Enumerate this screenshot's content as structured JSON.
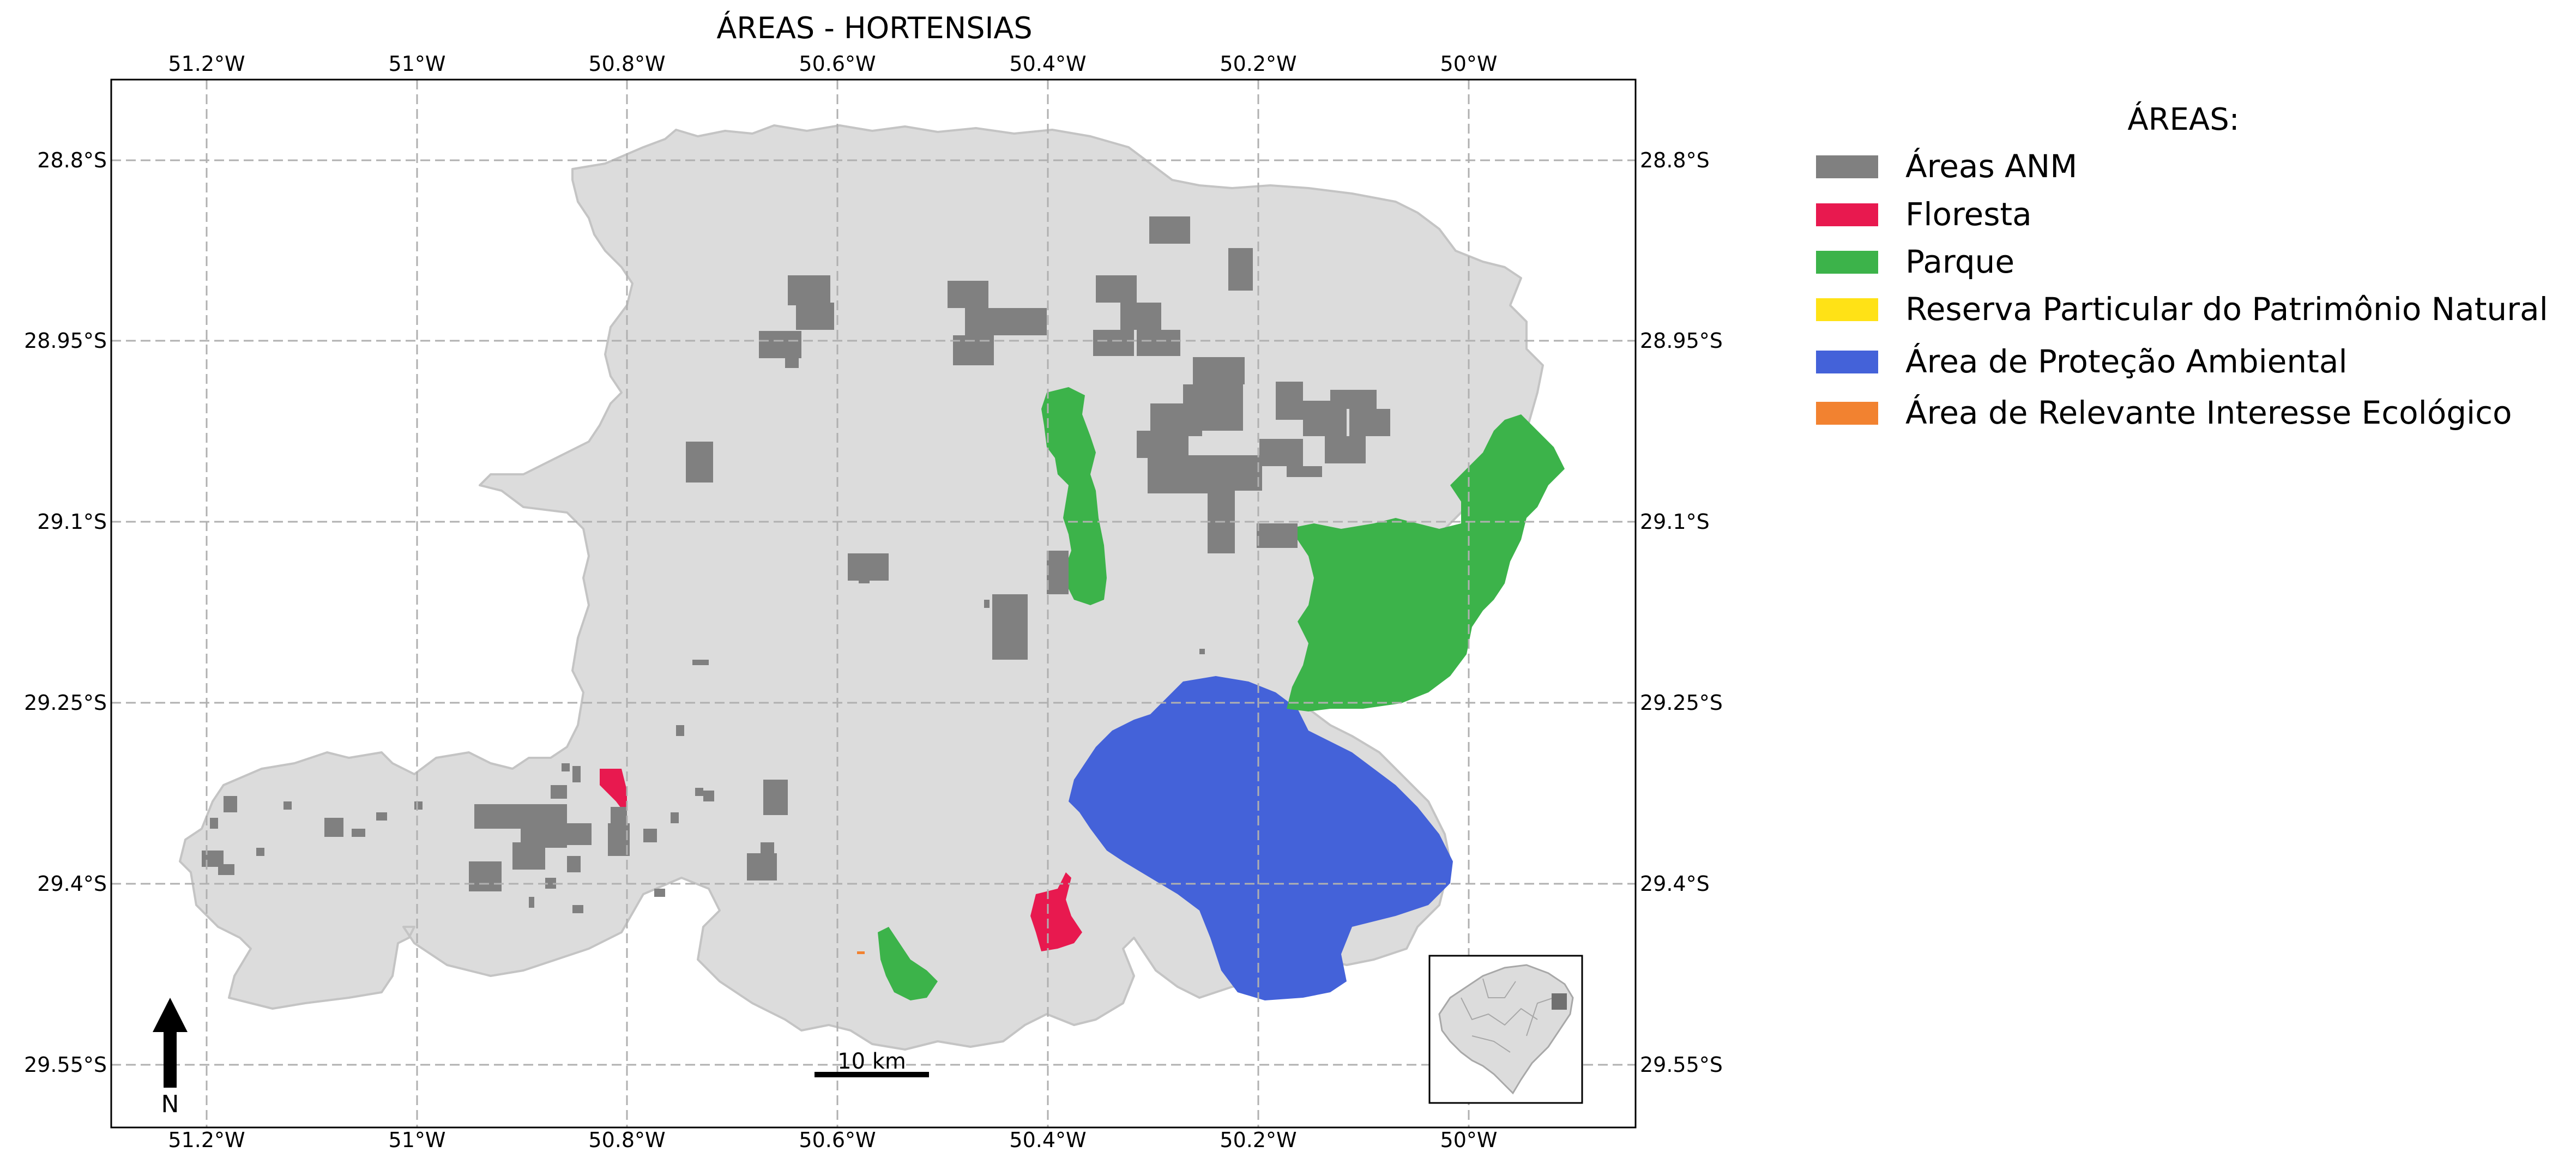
{
  "title": "ÁREAS - HORTENSIAS",
  "axes": {
    "lon_ticks": [
      "51.2°W",
      "51°W",
      "50.8°W",
      "50.6°W",
      "50.4°W",
      "50.2°W",
      "50°W"
    ],
    "lat_ticks": [
      "28.8°S",
      "28.95°S",
      "29.1°S",
      "29.25°S",
      "29.4°S",
      "29.55°S"
    ],
    "grid": true
  },
  "legend": {
    "title": "ÁREAS:",
    "placement": "right",
    "items": [
      {
        "label": "Áreas ANM",
        "color": "#808080"
      },
      {
        "label": "Floresta",
        "color": "#e8194f"
      },
      {
        "label": "Parque",
        "color": "#3cb34a"
      },
      {
        "label": "Reserva Particular do Patrimônio Natural",
        "color": "#ffe216"
      },
      {
        "label": "Área de Proteção Ambiental",
        "color": "#4462d9"
      },
      {
        "label": "Área de Relevante Interesse Ecológico",
        "color": "#f28230"
      }
    ]
  },
  "scale_bar": {
    "label": "10 km"
  },
  "north_arrow": {
    "label": "N"
  },
  "region_color": "#dcdcdc",
  "inset_map": {
    "description_icon": "locator-map-icon"
  }
}
